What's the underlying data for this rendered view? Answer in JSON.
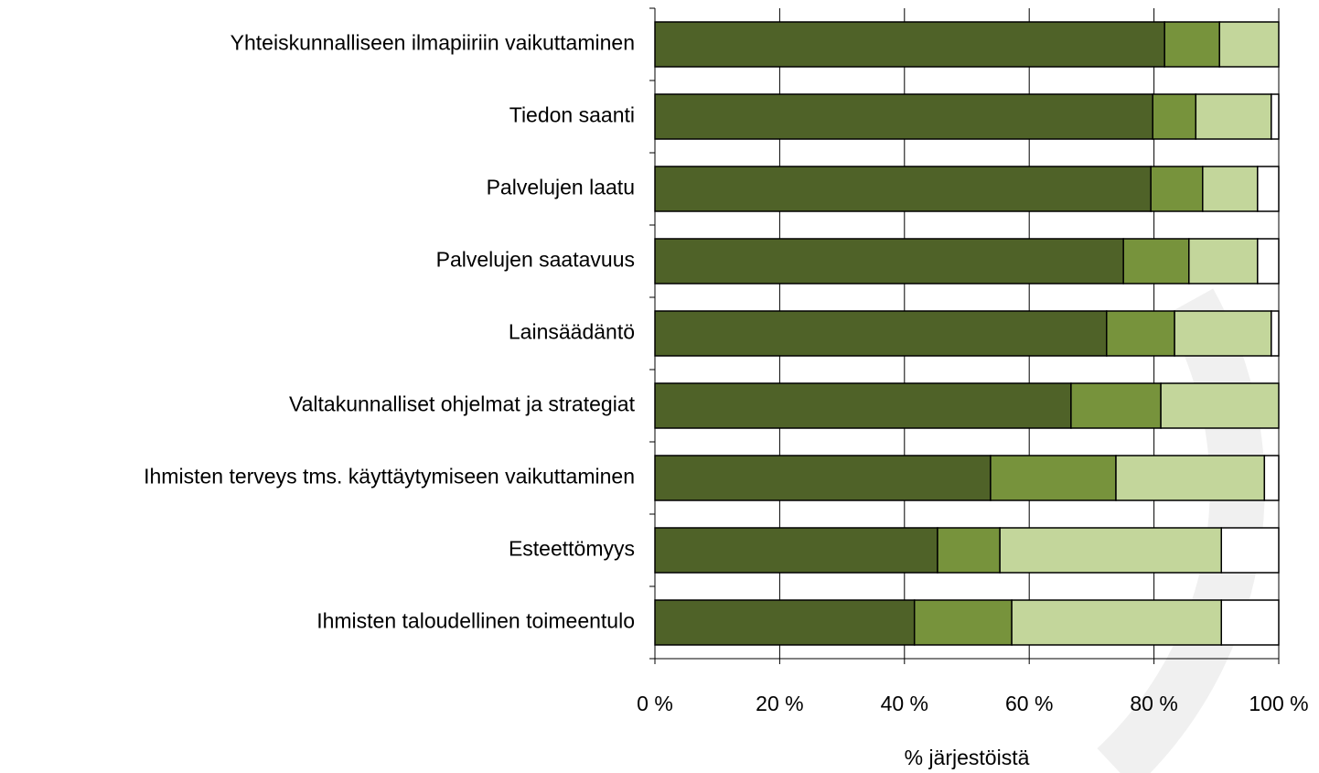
{
  "chart_data": {
    "type": "stacked-bar-horizontal",
    "categories": [
      "Yhteiskunnalliseen ilmapiiriin vaikuttaminen",
      "Tiedon saanti",
      "Palvelujen laatu",
      "Palvelujen saatavuus",
      "Lainsäädäntö",
      "Valtakunnalliset ohjelmat ja strategiat",
      "Ihmisten terveys tms.  käyttäytymiseen vaikuttaminen",
      "Esteettömyys",
      "Ihmisten taloudellinen toimeentulo"
    ],
    "series": [
      {
        "color": "#4f6228",
        "values": [
          81.7,
          79.8,
          79.5,
          75.1,
          72.4,
          66.7,
          53.8,
          45.3,
          41.6
        ]
      },
      {
        "color": "#77933c",
        "values": [
          8.8,
          6.9,
          8.3,
          10.5,
          10.9,
          14.4,
          20.1,
          10.0,
          15.6
        ]
      },
      {
        "color": "#c3d69b",
        "values": [
          9.5,
          12.1,
          8.8,
          11.0,
          15.5,
          18.9,
          23.8,
          35.5,
          33.6
        ]
      },
      {
        "color": "#ffffff",
        "values": [
          0,
          1.2,
          3.4,
          3.4,
          1.2,
          0,
          2.3,
          9.2,
          9.2
        ]
      }
    ],
    "x_label": "% järjestöistä",
    "xlim": [
      0,
      100
    ],
    "xticks": [
      {
        "value": 0,
        "label": "0 %"
      },
      {
        "value": 20,
        "label": "20 %"
      },
      {
        "value": 40,
        "label": "40 %"
      },
      {
        "value": 60,
        "label": "60 %"
      },
      {
        "value": 80,
        "label": "80 %"
      },
      {
        "value": 100,
        "label": "100 %"
      }
    ],
    "grid": true
  }
}
